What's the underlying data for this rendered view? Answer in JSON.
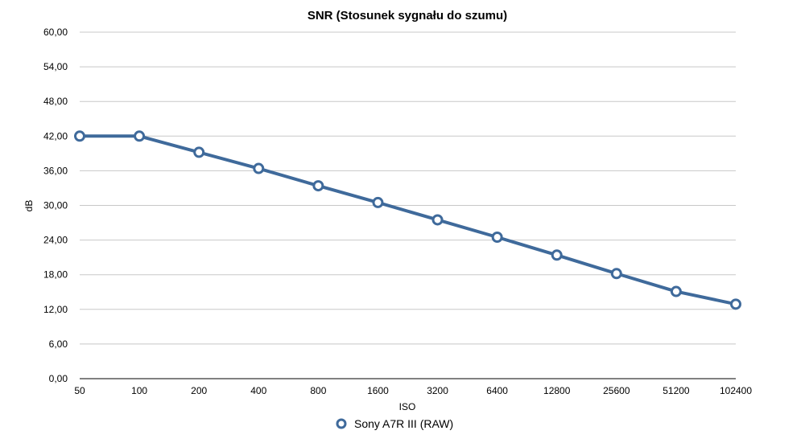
{
  "chart_data": {
    "type": "line",
    "title": "SNR (Stosunek sygnału do szumu)",
    "xlabel": "ISO",
    "ylabel": "dB",
    "categories": [
      "50",
      "100",
      "200",
      "400",
      "800",
      "1600",
      "3200",
      "6400",
      "12800",
      "25600",
      "51200",
      "102400"
    ],
    "y_ticks": [
      "0,00",
      "6,00",
      "12,00",
      "18,00",
      "24,00",
      "30,00",
      "36,00",
      "42,00",
      "48,00",
      "54,00",
      "60,00"
    ],
    "ylim": [
      0,
      60
    ],
    "grid": true,
    "legend_position": "bottom",
    "series": [
      {
        "name": "Sony A7R III (RAW)",
        "color": "#3f6a9b",
        "marker": "circle-hollow",
        "values": [
          42.0,
          42.0,
          39.2,
          36.4,
          33.4,
          30.5,
          27.5,
          24.5,
          21.4,
          18.2,
          15.1,
          12.9
        ]
      }
    ]
  }
}
